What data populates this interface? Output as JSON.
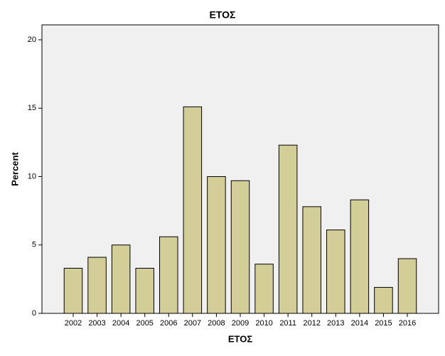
{
  "chart_data": {
    "type": "bar",
    "title": "ΕΤΟΣ",
    "x_label": "ΕΤΟΣ",
    "y_label": "Percent",
    "categories": [
      "2002",
      "2003",
      "2004",
      "2005",
      "2006",
      "2007",
      "2008",
      "2009",
      "2010",
      "2011",
      "2012",
      "2013",
      "2014",
      "2015",
      "2016"
    ],
    "values": [
      3.3,
      4.1,
      5.0,
      3.3,
      5.6,
      15.1,
      10.0,
      9.7,
      3.6,
      12.3,
      7.8,
      6.1,
      8.3,
      1.9,
      4.0
    ],
    "color": "#d3ce97",
    "ylim": [
      0,
      20
    ],
    "yticks": [
      0,
      5,
      10,
      15,
      20
    ],
    "grid": false
  }
}
